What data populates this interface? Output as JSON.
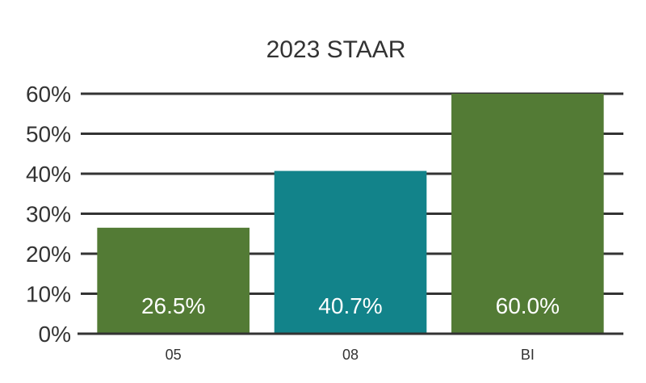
{
  "chart_data": {
    "type": "bar",
    "title": "2023 STAAR",
    "categories": [
      "05",
      "08",
      "BI"
    ],
    "values": [
      26.5,
      40.7,
      60.0
    ],
    "data_labels": [
      "26.5%",
      "40.7%",
      "60.0%"
    ],
    "bar_colors": [
      "#537b35",
      "#12838a",
      "#537b35"
    ],
    "ylim": [
      0,
      60
    ],
    "yticks": [
      0,
      10,
      20,
      30,
      40,
      50,
      60
    ],
    "ytick_labels": [
      "0%",
      "10%",
      "20%",
      "30%",
      "40%",
      "50%",
      "60%"
    ],
    "xlabel": "",
    "ylabel": "",
    "grid": true,
    "legend": "none"
  }
}
